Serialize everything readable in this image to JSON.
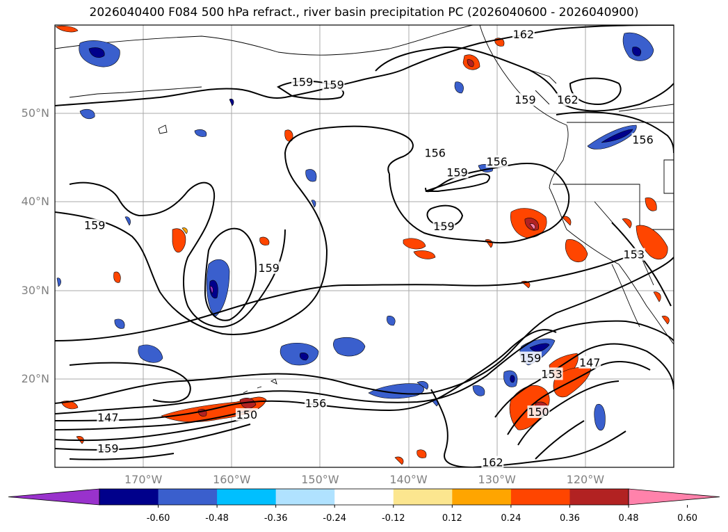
{
  "title": "2026040400 F084 500 hPa refract., river basin precipitation PC (2026040600 - 2026040900)",
  "map": {
    "lon_range": [
      -180,
      -110
    ],
    "lat_range": [
      10,
      60
    ],
    "lat_labels": [
      {
        "lat": 50,
        "text": "50°N"
      },
      {
        "lat": 40,
        "text": "40°N"
      },
      {
        "lat": 30,
        "text": "30°N"
      },
      {
        "lat": 20,
        "text": "20°N"
      }
    ],
    "lon_labels": [
      {
        "lon": -170,
        "text": "170°W"
      },
      {
        "lon": -160,
        "text": "160°W"
      },
      {
        "lon": -150,
        "text": "150°W"
      },
      {
        "lon": -140,
        "text": "140°W"
      },
      {
        "lon": -130,
        "text": "130°W"
      },
      {
        "lon": -120,
        "text": "120°W"
      }
    ],
    "contour_labels": [
      {
        "text": "162",
        "lon": -127.0,
        "lat": 58.9
      },
      {
        "text": "159",
        "lon": -152.0,
        "lat": 53.5
      },
      {
        "text": "159",
        "lon": -148.5,
        "lat": 53.2
      },
      {
        "text": "159",
        "lon": -126.8,
        "lat": 51.5
      },
      {
        "text": "162",
        "lon": -122.0,
        "lat": 51.5
      },
      {
        "text": "156",
        "lon": -137.0,
        "lat": 45.5
      },
      {
        "text": "156",
        "lon": -130.0,
        "lat": 44.5
      },
      {
        "text": "159",
        "lon": -134.5,
        "lat": 43.3
      },
      {
        "text": "156",
        "lon": -113.5,
        "lat": 47.0
      },
      {
        "text": "159",
        "lon": -175.5,
        "lat": 37.3
      },
      {
        "text": "159",
        "lon": -136.0,
        "lat": 37.2
      },
      {
        "text": "159",
        "lon": -155.8,
        "lat": 32.5
      },
      {
        "text": "153",
        "lon": -114.5,
        "lat": 34.0
      },
      {
        "text": "159",
        "lon": -126.2,
        "lat": 22.3
      },
      {
        "text": "153",
        "lon": -123.8,
        "lat": 20.5
      },
      {
        "text": "147",
        "lon": -119.5,
        "lat": 21.8
      },
      {
        "text": "156",
        "lon": -150.5,
        "lat": 17.2
      },
      {
        "text": "150",
        "lon": -158.3,
        "lat": 15.9
      },
      {
        "text": "147",
        "lon": -174.0,
        "lat": 15.6
      },
      {
        "text": "150",
        "lon": -125.3,
        "lat": 16.2
      },
      {
        "text": "159",
        "lon": -174.0,
        "lat": 12.1
      },
      {
        "text": "162",
        "lon": -130.5,
        "lat": 10.5
      }
    ]
  },
  "colorbar": {
    "ticks": [
      "-0.60",
      "-0.48",
      "-0.36",
      "-0.24",
      "-0.12",
      "0.12",
      "0.24",
      "0.36",
      "0.48",
      "0.60"
    ],
    "colors": [
      "#9932cc",
      "#00008b",
      "#3a5fcd",
      "#00bfff",
      "#b0e2ff",
      "#ffffff",
      "#fce68f",
      "#ffa500",
      "#ff4500",
      "#b22222",
      "#ff82ab"
    ]
  }
}
